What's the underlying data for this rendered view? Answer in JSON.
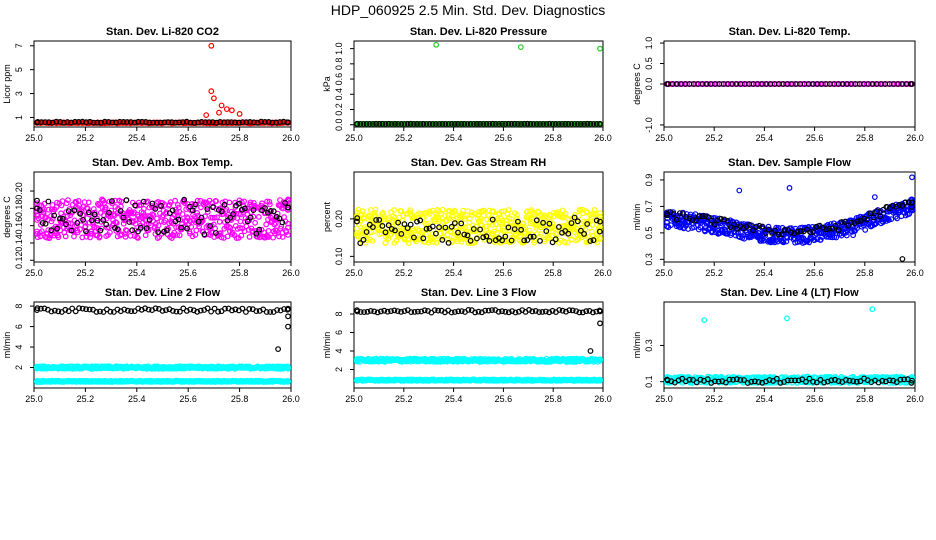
{
  "figure_title": "HDP_060925  2.5 Min. Std. Dev. Diagnostics",
  "colors": {
    "red": "#ff0000",
    "black": "#000000",
    "green": "#22cc22",
    "magenta": "#ff00ff",
    "yellow": "#ffff00",
    "blue": "#0000ff",
    "cyan": "#00ffff"
  },
  "chart_data": [
    {
      "type": "scatter",
      "title": "Stan. Dev. Li-820 CO2",
      "ylabel": "Licor ppm",
      "xlim": [
        25.0,
        26.0
      ],
      "ylim": [
        0.2,
        7.4
      ],
      "xticks": [
        "25.0",
        "25.2",
        "25.4",
        "25.6",
        "25.8",
        "26.0"
      ],
      "yticks": [
        "1",
        "3",
        "5",
        "7"
      ],
      "series": [
        {
          "name": "main",
          "color": "red",
          "base": 0.55,
          "spread": 0.08,
          "n": 230,
          "points": [
            [
              25.69,
              7.0
            ],
            [
              25.69,
              3.2
            ],
            [
              25.7,
              2.6
            ],
            [
              25.73,
              2.0
            ],
            [
              25.75,
              1.7
            ],
            [
              25.77,
              1.6
            ],
            [
              25.72,
              1.4
            ],
            [
              25.8,
              1.3
            ],
            [
              25.67,
              1.2
            ]
          ]
        },
        {
          "name": "overlay",
          "color": "black",
          "base": 0.6,
          "spread": 0.1,
          "n": 70
        }
      ]
    },
    {
      "type": "scatter",
      "title": "Stan. Dev. Li-820 Pressure",
      "ylabel": "kPa",
      "xlim": [
        25.0,
        26.0
      ],
      "ylim": [
        -0.03,
        1.1
      ],
      "xticks": [
        "25.0",
        "25.2",
        "25.4",
        "25.6",
        "25.8",
        "26.0"
      ],
      "yticks": [
        "0.0",
        "0.2",
        "0.4",
        "0.6",
        "0.8",
        "1.0"
      ],
      "series": [
        {
          "name": "main",
          "color": "green",
          "base": 0.01,
          "spread": 0.004,
          "n": 200,
          "points": [
            [
              25.33,
              1.05
            ],
            [
              25.67,
              1.02
            ],
            [
              25.99,
              1.0
            ]
          ]
        },
        {
          "name": "overlay",
          "color": "black",
          "base": 0.01,
          "spread": 0.004,
          "n": 80
        }
      ]
    },
    {
      "type": "scatter",
      "title": "Stan. Dev. Li-820 Temp.",
      "ylabel": "degrees C",
      "xlim": [
        25.0,
        26.0
      ],
      "ylim": [
        -1.05,
        1.05
      ],
      "xticks": [
        "25.0",
        "25.2",
        "25.4",
        "25.6",
        "25.8",
        "26.0"
      ],
      "yticks": [
        "-1.0",
        "0.0",
        "0.5",
        "1.0"
      ],
      "series": [
        {
          "name": "main",
          "color": "magenta",
          "base": 0.0,
          "spread": 0.0,
          "n": 110
        },
        {
          "name": "overlay",
          "color": "black",
          "base": 0.0,
          "spread": 0.0,
          "n": 60
        }
      ]
    },
    {
      "type": "scatter",
      "title": "Stan. Dev. Amb. Box Temp.",
      "ylabel": "degrees C",
      "xlim": [
        25.0,
        26.0
      ],
      "ylim": [
        0.118,
        0.222
      ],
      "xticks": [
        "25.0",
        "25.2",
        "25.4",
        "25.6",
        "25.8",
        "26.0"
      ],
      "yticks": [
        "0.12",
        "0.14",
        "0.16",
        "0.18",
        "0.20"
      ],
      "series": [
        {
          "name": "main",
          "color": "magenta",
          "base": 0.168,
          "spread": 0.045,
          "n": 560
        },
        {
          "name": "overlay",
          "color": "black",
          "base": 0.17,
          "spread": 0.04,
          "n": 90
        }
      ]
    },
    {
      "type": "scatter",
      "title": "Stan. Dev. Gas Stream RH",
      "ylabel": "percent",
      "xlim": [
        25.0,
        26.0
      ],
      "ylim": [
        0.085,
        0.325
      ],
      "xticks": [
        "25.0",
        "25.2",
        "25.4",
        "25.6",
        "25.8",
        "26.0"
      ],
      "yticks": [
        "0.10",
        "0.20"
      ],
      "series": [
        {
          "name": "main",
          "color": "yellow",
          "base": 0.18,
          "spread": 0.09,
          "n": 560
        },
        {
          "name": "overlay",
          "color": "black",
          "base": 0.17,
          "spread": 0.07,
          "n": 80
        }
      ]
    },
    {
      "type": "scatter",
      "title": "Stan. Dev. Sample Flow",
      "ylabel": "ml/min",
      "xlim": [
        25.0,
        26.0
      ],
      "ylim": [
        0.28,
        0.96
      ],
      "xticks": [
        "25.0",
        "25.2",
        "25.4",
        "25.6",
        "25.8",
        "26.0"
      ],
      "yticks": [
        "0.3",
        "0.5",
        "0.7",
        "0.9"
      ],
      "series": [
        {
          "name": "main",
          "color": "blue",
          "base": 0.57,
          "spread": 0.12,
          "n": 520,
          "trend": "flow",
          "points": [
            [
              25.3,
              0.82
            ],
            [
              25.5,
              0.84
            ],
            [
              25.84,
              0.77
            ],
            [
              25.97,
              0.7
            ],
            [
              25.99,
              0.92
            ]
          ]
        },
        {
          "name": "overlay",
          "color": "black",
          "base": 0.6,
          "spread": 0.06,
          "n": 80,
          "trend": "flow",
          "points": [
            [
              25.95,
              0.3
            ]
          ]
        }
      ]
    },
    {
      "type": "scatter",
      "title": "Stan. Dev. Line 2 Flow",
      "ylabel": "ml/min",
      "xlim": [
        25.0,
        26.0
      ],
      "ylim": [
        0.0,
        8.4
      ],
      "xticks": [
        "25.0",
        "25.2",
        "25.4",
        "25.6",
        "25.8",
        "26.0"
      ],
      "yticks": [
        "2",
        "4",
        "6",
        "8"
      ],
      "series": [
        {
          "name": "band-high",
          "color": "cyan",
          "base": 2.0,
          "spread": 0.25,
          "n": 420
        },
        {
          "name": "band-low",
          "color": "cyan",
          "base": 0.65,
          "spread": 0.12,
          "n": 420
        },
        {
          "name": "overlay",
          "color": "black",
          "base": 7.6,
          "spread": 0.4,
          "n": 75,
          "points": [
            [
              25.95,
              3.8
            ],
            [
              25.99,
              6.0
            ],
            [
              25.99,
              7.0
            ]
          ]
        }
      ]
    },
    {
      "type": "scatter",
      "title": "Stan. Dev. Line 3 Flow",
      "ylabel": "ml/min",
      "xlim": [
        25.0,
        26.0
      ],
      "ylim": [
        0.0,
        9.3
      ],
      "xticks": [
        "25.0",
        "25.2",
        "25.4",
        "25.6",
        "25.8",
        "26.0"
      ],
      "yticks": [
        "2",
        "4",
        "6",
        "8"
      ],
      "series": [
        {
          "name": "band-high",
          "color": "cyan",
          "base": 3.0,
          "spread": 0.35,
          "n": 420
        },
        {
          "name": "band-low",
          "color": "cyan",
          "base": 0.85,
          "spread": 0.15,
          "n": 420
        },
        {
          "name": "overlay",
          "color": "black",
          "base": 8.3,
          "spread": 0.3,
          "n": 75,
          "points": [
            [
              25.95,
              4.0
            ],
            [
              25.99,
              7.0
            ]
          ]
        }
      ]
    },
    {
      "type": "scatter",
      "title": "Stan. Dev. Line 4 (LT) Flow",
      "ylabel": "ml/min",
      "xlim": [
        25.0,
        26.0
      ],
      "ylim": [
        0.065,
        0.54
      ],
      "xticks": [
        "25.0",
        "25.2",
        "25.4",
        "25.6",
        "25.8",
        "26.0"
      ],
      "yticks": [
        "0.1",
        "0.3"
      ],
      "series": [
        {
          "name": "main",
          "color": "cyan",
          "base": 0.11,
          "spread": 0.035,
          "n": 460,
          "points": [
            [
              25.16,
              0.44
            ],
            [
              25.49,
              0.45
            ],
            [
              25.83,
              0.5
            ]
          ]
        },
        {
          "name": "overlay",
          "color": "black",
          "base": 0.105,
          "spread": 0.025,
          "n": 70
        }
      ]
    }
  ]
}
